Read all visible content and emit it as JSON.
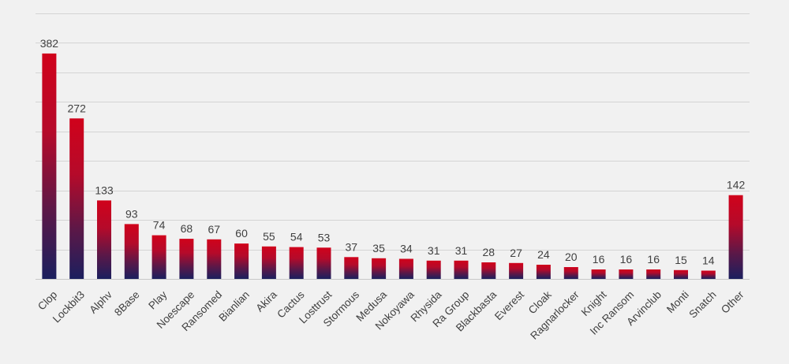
{
  "chart_data": {
    "type": "bar",
    "title": "",
    "xlabel": "",
    "ylabel": "",
    "ylim": [
      0,
      450
    ],
    "grid": true,
    "y_axis_labels_visible": false,
    "bar_gradient": {
      "top": "#d0021b",
      "bottom": "#1b1f5e"
    },
    "categories": [
      "Clop",
      "Lockbit3",
      "Alphv",
      "8Base",
      "Play",
      "Noescape",
      "Ransomed",
      "Bianlian",
      "Akira",
      "Cactus",
      "Losttrust",
      "Stormous",
      "Medusa",
      "Nokoyawa",
      "Rhysida",
      "Ra Group",
      "Blackbasta",
      "Everest",
      "Cloak",
      "Ragnarlocker",
      "Knight",
      "Inc Ransom",
      "Arvinclub",
      "Monti",
      "Snatch",
      "Other"
    ],
    "values": [
      382,
      272,
      133,
      93,
      74,
      68,
      67,
      60,
      55,
      54,
      53,
      37,
      35,
      34,
      31,
      31,
      28,
      27,
      24,
      20,
      16,
      16,
      16,
      15,
      14,
      142
    ],
    "value_labels": [
      "382",
      "272",
      "133",
      "93",
      "74",
      "68",
      "67",
      "60",
      "55",
      "54",
      "53",
      "37",
      "35",
      "34",
      "31",
      "31",
      "28",
      "27",
      "24",
      "20",
      "16",
      "16",
      "16",
      "15",
      "14",
      "142"
    ]
  }
}
